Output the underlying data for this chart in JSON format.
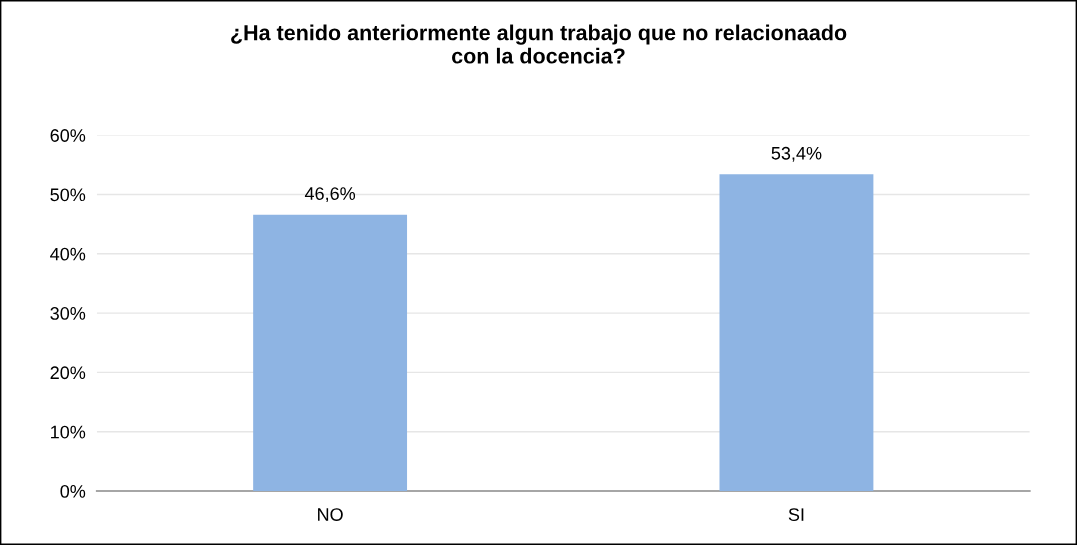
{
  "chart_data": {
    "type": "bar",
    "title": "¿Ha tenido anteriormente algun trabajo que no relacionaado\ncon la docencia?",
    "categories": [
      "NO",
      "SI"
    ],
    "values": [
      46.6,
      53.4
    ],
    "value_labels": [
      "46,6%",
      "53,4%"
    ],
    "color": "#8eb4e3",
    "ylim": [
      0,
      60
    ],
    "yticks": [
      {
        "value": 0,
        "label": "0%"
      },
      {
        "value": 10,
        "label": "10%"
      },
      {
        "value": 20,
        "label": "20%"
      },
      {
        "value": 30,
        "label": "30%"
      },
      {
        "value": 40,
        "label": "40%"
      },
      {
        "value": 50,
        "label": "50%"
      },
      {
        "value": 60,
        "label": "60%"
      }
    ],
    "grid": "y",
    "legend": false
  }
}
